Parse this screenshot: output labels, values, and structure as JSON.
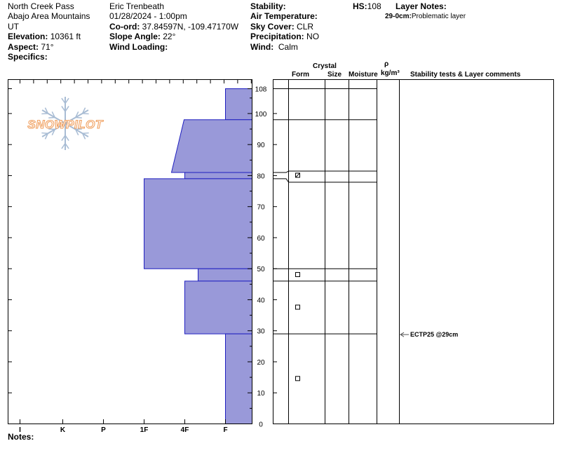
{
  "header": {
    "location": "North Creek Pass",
    "area": "Abajo Area Mountains",
    "state": "UT",
    "elevation_label": "Elevation:",
    "elevation": "10361 ft",
    "aspect_label": "Aspect:",
    "aspect": "71°",
    "specifics_label": "Specifics:",
    "observer": "Eric Trenbeath",
    "datetime": "01/28/2024 - 1:00pm",
    "coord_label": "Co-ord:",
    "coord": "37.84597N, -109.47170W",
    "slope_label": "Slope Angle:",
    "slope": "22°",
    "wind_loading_label": "Wind Loading:",
    "stability_label": "Stability:",
    "air_temp_label": "Air Temperature:",
    "sky_label": "Sky Cover:",
    "sky": "CLR",
    "precip_label": "Precipitation:",
    "precip": "NO",
    "wind_label": "Wind:",
    "wind": "Calm",
    "hs_label": "HS:",
    "hs": "108",
    "layer_notes_label": "Layer Notes:",
    "layer_note_range": "29-0cm:",
    "layer_note_text": "Problematic layer"
  },
  "columns": {
    "crystal": "Crystal",
    "form": "Form",
    "size": "Size",
    "moisture": "Moisture",
    "rho": "ρ",
    "rho_unit": "kg/m³",
    "stability": "Stability tests & Layer comments"
  },
  "footer": {
    "notes_label": "Notes:"
  },
  "logo": {
    "text": "SNOWPILOT"
  },
  "colors": {
    "layer_fill": "#9999d9",
    "layer_stroke": "#2020c0",
    "logo_orange": "#f0a060",
    "logo_blue": "#a8bcd4"
  },
  "chart_data": {
    "type": "bar",
    "orientation": "horizontal",
    "x_categories": [
      "I",
      "K",
      "P",
      "1F",
      "4F",
      "F"
    ],
    "y_ticks": [
      0,
      10,
      20,
      30,
      40,
      50,
      60,
      70,
      80,
      90,
      100,
      108
    ],
    "ylim": [
      0,
      108
    ],
    "layers": [
      {
        "top": 108,
        "bottom": 98,
        "hardness_top": "F",
        "hardness_bottom": "F"
      },
      {
        "top": 98,
        "bottom": 81,
        "hardness_top": "4F-",
        "hardness_bottom": "1F-"
      },
      {
        "top": 81,
        "bottom": 79,
        "hardness_top": "4F",
        "hardness_bottom": "4F"
      },
      {
        "top": 79,
        "bottom": 50,
        "hardness_top": "1F",
        "hardness_bottom": "1F"
      },
      {
        "top": 50,
        "bottom": 46,
        "hardness_top": "4F+",
        "hardness_bottom": "4F+"
      },
      {
        "top": 46,
        "bottom": 29,
        "hardness_top": "4F",
        "hardness_bottom": "4F"
      },
      {
        "top": 29,
        "bottom": 0,
        "hardness_top": "F",
        "hardness_bottom": "F"
      }
    ],
    "form_markers": [
      {
        "depth": 80,
        "symbol": "⊠"
      },
      {
        "depth": 48,
        "symbol": "□"
      },
      {
        "depth": 37.5,
        "symbol": "□"
      },
      {
        "depth": 14.5,
        "symbol": "□"
      }
    ],
    "stability_tests": [
      {
        "depth": 29,
        "label": "ECTP25 @29cm"
      }
    ]
  }
}
